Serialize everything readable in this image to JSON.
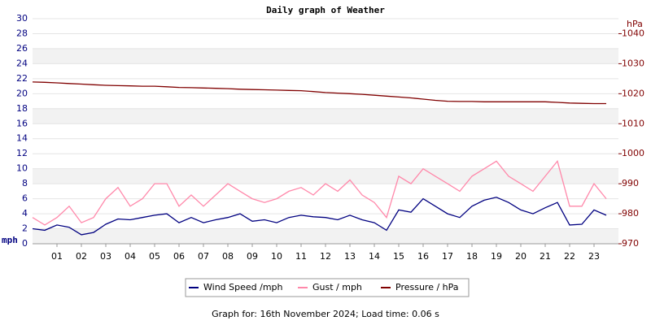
{
  "chart_data": {
    "type": "line",
    "title": "Daily graph of Weather",
    "y_label": "mph",
    "y2_label": "hPa",
    "footer": "Graph for: 16th November 2024; Load time: 0.06 s",
    "x": [
      0,
      0.5,
      1,
      1.5,
      2,
      2.5,
      3,
      3.5,
      4,
      4.5,
      5,
      5.5,
      6,
      6.5,
      7,
      7.5,
      8,
      8.5,
      9,
      9.5,
      10,
      10.5,
      11,
      11.5,
      12,
      12.5,
      13,
      13.5,
      14,
      14.5,
      15,
      15.5,
      16,
      16.5,
      17,
      17.5,
      18,
      18.5,
      19,
      19.5,
      20,
      20.5,
      21,
      21.5,
      22,
      22.5,
      23,
      23.5
    ],
    "xlim": [
      0,
      24
    ],
    "xticks": [
      {
        "value": 1,
        "label": "01"
      },
      {
        "value": 2,
        "label": "02"
      },
      {
        "value": 3,
        "label": "03"
      },
      {
        "value": 4,
        "label": "04"
      },
      {
        "value": 5,
        "label": "05"
      },
      {
        "value": 6,
        "label": "06"
      },
      {
        "value": 7,
        "label": "07"
      },
      {
        "value": 8,
        "label": "08"
      },
      {
        "value": 9,
        "label": "09"
      },
      {
        "value": 10,
        "label": "10"
      },
      {
        "value": 11,
        "label": "11"
      },
      {
        "value": 12,
        "label": "12"
      },
      {
        "value": 13,
        "label": "13"
      },
      {
        "value": 14,
        "label": "14"
      },
      {
        "value": 15,
        "label": "15"
      },
      {
        "value": 16,
        "label": "16"
      },
      {
        "value": 17,
        "label": "17"
      },
      {
        "value": 18,
        "label": "18"
      },
      {
        "value": 19,
        "label": "19"
      },
      {
        "value": 20,
        "label": "20"
      },
      {
        "value": 21,
        "label": "21"
      },
      {
        "value": 22,
        "label": "22"
      },
      {
        "value": 23,
        "label": "23"
      }
    ],
    "ylim": [
      0,
      30
    ],
    "yticks": [
      0,
      2,
      4,
      6,
      8,
      10,
      12,
      14,
      16,
      18,
      20,
      22,
      24,
      26,
      28,
      30
    ],
    "y2lim": [
      970,
      1045
    ],
    "y2ticks": [
      970,
      980,
      990,
      1000,
      1010,
      1020,
      1030,
      1040
    ],
    "grid": true,
    "legend": "bottom",
    "series": [
      {
        "name": "Wind Speed /mph",
        "color": "#000080",
        "values": [
          2.0,
          1.8,
          2.5,
          2.2,
          1.2,
          1.5,
          2.6,
          3.3,
          3.2,
          3.5,
          3.8,
          4.0,
          2.8,
          3.5,
          2.8,
          3.2,
          3.5,
          4.0,
          3.0,
          3.2,
          2.8,
          3.5,
          3.8,
          3.6,
          3.5,
          3.2,
          3.8,
          3.2,
          2.8,
          1.8,
          4.5,
          4.2,
          6.0,
          5.0,
          4.0,
          3.5,
          5.0,
          5.8,
          6.2,
          5.5,
          4.5,
          4.0,
          4.8,
          5.5,
          2.5,
          2.6,
          4.5,
          3.8
        ]
      },
      {
        "name": "Gust / mph",
        "color": "#ff88aa",
        "values": [
          3.5,
          2.5,
          3.5,
          5,
          2.8,
          3.5,
          6,
          7.5,
          5,
          6,
          8,
          8,
          5,
          6.5,
          5,
          6.5,
          8,
          7,
          6,
          5.5,
          6,
          7,
          7.5,
          6.5,
          8,
          7,
          8.5,
          6.5,
          5.5,
          3.5,
          9,
          8,
          10,
          9,
          8,
          7,
          9,
          10,
          11,
          9,
          8,
          7,
          9,
          11,
          5,
          5,
          8,
          6
        ]
      },
      {
        "name": "Pressure / hPa",
        "color": "#800000",
        "axis": "y2",
        "values": [
          1023.9,
          1023.8,
          1023.6,
          1023.4,
          1023.2,
          1023.0,
          1022.8,
          1022.7,
          1022.6,
          1022.5,
          1022.5,
          1022.3,
          1022.1,
          1022.0,
          1021.9,
          1021.8,
          1021.7,
          1021.5,
          1021.4,
          1021.3,
          1021.2,
          1021.1,
          1021.0,
          1020.7,
          1020.4,
          1020.2,
          1020.0,
          1019.8,
          1019.5,
          1019.2,
          1018.9,
          1018.6,
          1018.2,
          1017.8,
          1017.5,
          1017.4,
          1017.4,
          1017.3,
          1017.3,
          1017.3,
          1017.3,
          1017.3,
          1017.3,
          1017.1,
          1016.9,
          1016.8,
          1016.7,
          1016.7
        ]
      }
    ]
  }
}
